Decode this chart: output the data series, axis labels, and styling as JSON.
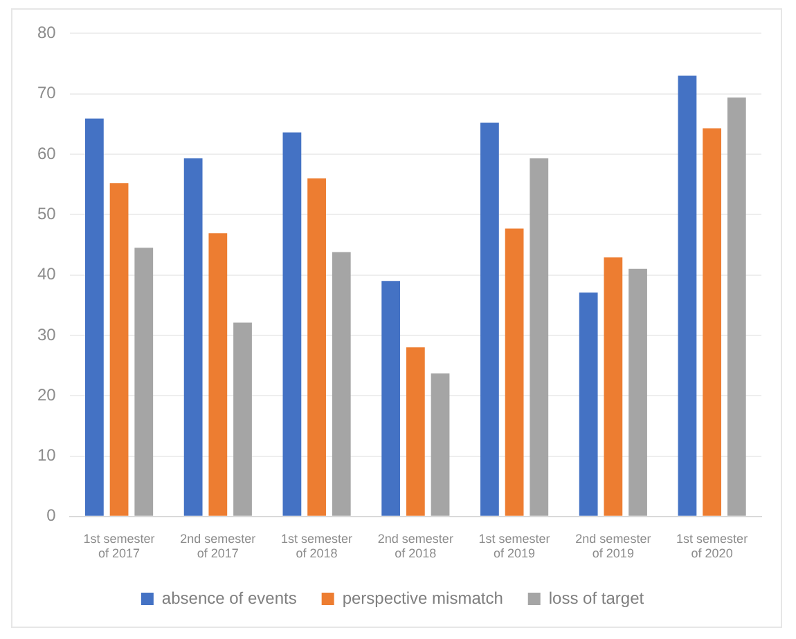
{
  "chart_data": {
    "type": "bar",
    "categories": [
      "1st semester of 2017",
      "2nd semester of 2017",
      "1st semester of 2018",
      "2nd semester of 2018",
      "1st semester of 2019",
      "2nd semester of 2019",
      "1st semester of 2020"
    ],
    "series": [
      {
        "name": "absence of events",
        "color": "#4472c4",
        "values": [
          65.9,
          59.3,
          63.6,
          39.0,
          65.2,
          37.1,
          73.0
        ]
      },
      {
        "name": "perspective mismatch",
        "color": "#ed7d31",
        "values": [
          55.2,
          46.9,
          56.0,
          28.0,
          47.7,
          42.9,
          64.3
        ]
      },
      {
        "name": "loss of target",
        "color": "#a5a5a5",
        "values": [
          44.5,
          32.1,
          43.8,
          23.7,
          59.3,
          41.0,
          69.4
        ]
      }
    ],
    "ylim": [
      0,
      80
    ],
    "yticks": [
      0,
      10,
      20,
      30,
      40,
      50,
      60,
      70,
      80
    ],
    "grid": "y",
    "legend": "bottom"
  }
}
